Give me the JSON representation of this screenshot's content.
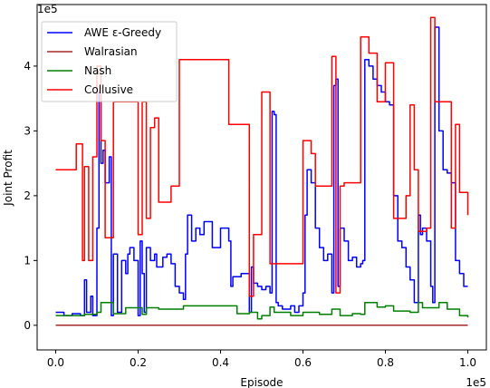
{
  "chart_data": {
    "type": "line",
    "xlabel": "Episode",
    "ylabel": "Joint Profit",
    "x_scale_label": "1e5",
    "y_scale_label": "1e5",
    "xlim": [
      -0.045,
      1.045
    ],
    "ylim": [
      -0.38,
      4.95
    ],
    "x_ticks": [
      0.0,
      0.2,
      0.4,
      0.6,
      0.8,
      1.0
    ],
    "x_tick_labels": [
      "0.0",
      "0.2",
      "0.4",
      "0.6",
      "0.8",
      "1.0"
    ],
    "y_ticks": [
      0,
      1,
      2,
      3,
      4
    ],
    "y_tick_labels": [
      "0",
      "1",
      "2",
      "3",
      "4"
    ],
    "grid": false,
    "legend_position": "top-left",
    "series": [
      {
        "name": "AWE ε-Greedy",
        "color": "#0000ff",
        "x": [
          0.0,
          0.02,
          0.04,
          0.06,
          0.07,
          0.075,
          0.085,
          0.09,
          0.1,
          0.105,
          0.11,
          0.115,
          0.12,
          0.13,
          0.135,
          0.14,
          0.15,
          0.16,
          0.17,
          0.175,
          0.18,
          0.19,
          0.2,
          0.205,
          0.21,
          0.215,
          0.22,
          0.23,
          0.24,
          0.245,
          0.26,
          0.27,
          0.28,
          0.29,
          0.3,
          0.31,
          0.315,
          0.32,
          0.33,
          0.34,
          0.35,
          0.36,
          0.38,
          0.4,
          0.42,
          0.425,
          0.43,
          0.45,
          0.47,
          0.475,
          0.48,
          0.49,
          0.5,
          0.51,
          0.52,
          0.525,
          0.53,
          0.535,
          0.54,
          0.55,
          0.56,
          0.57,
          0.58,
          0.59,
          0.6,
          0.605,
          0.61,
          0.62,
          0.63,
          0.64,
          0.65,
          0.66,
          0.67,
          0.675,
          0.68,
          0.685,
          0.69,
          0.7,
          0.71,
          0.72,
          0.73,
          0.74,
          0.745,
          0.75,
          0.76,
          0.77,
          0.78,
          0.79,
          0.8,
          0.81,
          0.82,
          0.83,
          0.84,
          0.85,
          0.86,
          0.87,
          0.88,
          0.885,
          0.89,
          0.9,
          0.91,
          0.915,
          0.92,
          0.93,
          0.94,
          0.95,
          0.96,
          0.97,
          0.98,
          0.99,
          1.0
        ],
        "values": [
          0.2,
          0.15,
          0.18,
          0.15,
          0.7,
          0.2,
          0.45,
          0.15,
          1.5,
          3.6,
          2.5,
          2.7,
          2.2,
          2.6,
          0.15,
          1.1,
          0.2,
          1.0,
          0.8,
          1.1,
          1.2,
          1.0,
          0.15,
          1.3,
          0.8,
          0.2,
          1.2,
          1.0,
          1.1,
          0.9,
          1.05,
          1.1,
          0.95,
          0.6,
          0.5,
          0.4,
          1.1,
          1.7,
          1.3,
          1.5,
          1.4,
          1.6,
          1.2,
          1.5,
          1.3,
          0.6,
          0.75,
          0.8,
          0.2,
          0.9,
          0.65,
          0.6,
          0.55,
          0.6,
          0.5,
          3.3,
          3.25,
          0.35,
          0.3,
          0.25,
          0.25,
          0.3,
          0.2,
          0.3,
          0.5,
          1.7,
          2.4,
          2.2,
          1.5,
          1.2,
          1.0,
          1.1,
          0.5,
          3.7,
          3.8,
          0.6,
          1.5,
          1.3,
          1.0,
          1.05,
          0.9,
          0.95,
          1.0,
          4.1,
          4.0,
          3.8,
          3.7,
          3.6,
          3.45,
          3.4,
          2.0,
          1.3,
          1.2,
          0.9,
          0.7,
          0.35,
          1.7,
          1.4,
          1.5,
          1.3,
          0.6,
          0.35,
          4.6,
          3.0,
          2.4,
          2.35,
          2.2,
          1.0,
          0.8,
          0.6,
          0.6
        ]
      },
      {
        "name": "Walrasian",
        "color": "#a52a2a",
        "x": [
          0.0,
          1.0
        ],
        "values": [
          0.0,
          0.0
        ]
      },
      {
        "name": "Nash",
        "color": "#008000",
        "x": [
          0.0,
          0.02,
          0.07,
          0.1,
          0.11,
          0.14,
          0.17,
          0.18,
          0.21,
          0.22,
          0.25,
          0.3,
          0.31,
          0.42,
          0.44,
          0.47,
          0.49,
          0.5,
          0.52,
          0.53,
          0.57,
          0.6,
          0.64,
          0.67,
          0.69,
          0.72,
          0.74,
          0.75,
          0.78,
          0.8,
          0.82,
          0.86,
          0.88,
          0.89,
          0.93,
          0.95,
          0.98,
          1.0
        ],
        "values": [
          0.15,
          0.15,
          0.17,
          0.2,
          0.35,
          0.18,
          0.27,
          0.27,
          0.17,
          0.27,
          0.25,
          0.25,
          0.3,
          0.3,
          0.18,
          0.2,
          0.1,
          0.15,
          0.28,
          0.2,
          0.15,
          0.2,
          0.17,
          0.25,
          0.15,
          0.18,
          0.17,
          0.35,
          0.28,
          0.3,
          0.22,
          0.2,
          0.35,
          0.27,
          0.35,
          0.25,
          0.15,
          0.12
        ]
      },
      {
        "name": "Collusive",
        "color": "#ff0000",
        "x": [
          0.0,
          0.05,
          0.065,
          0.07,
          0.08,
          0.09,
          0.1,
          0.11,
          0.12,
          0.14,
          0.16,
          0.2,
          0.21,
          0.22,
          0.23,
          0.24,
          0.25,
          0.28,
          0.3,
          0.31,
          0.32,
          0.36,
          0.42,
          0.47,
          0.48,
          0.5,
          0.52,
          0.54,
          0.6,
          0.62,
          0.63,
          0.67,
          0.68,
          0.69,
          0.7,
          0.74,
          0.76,
          0.78,
          0.8,
          0.82,
          0.85,
          0.86,
          0.87,
          0.88,
          0.9,
          0.91,
          0.92,
          0.935,
          0.96,
          0.97,
          0.98,
          1.0
        ],
        "values": [
          2.4,
          2.8,
          1.0,
          2.45,
          1.0,
          2.6,
          4.0,
          2.85,
          1.35,
          3.45,
          3.45,
          1.4,
          3.45,
          1.65,
          3.05,
          3.2,
          1.9,
          2.15,
          4.1,
          4.1,
          4.1,
          4.1,
          3.1,
          0.45,
          1.4,
          3.6,
          0.95,
          0.95,
          2.85,
          2.65,
          2.15,
          4.15,
          0.5,
          2.15,
          2.2,
          4.45,
          4.2,
          3.45,
          4.05,
          1.65,
          2.0,
          3.4,
          2.4,
          1.45,
          1.5,
          4.75,
          3.45,
          3.45,
          1.5,
          3.1,
          2.05,
          1.7
        ]
      }
    ]
  }
}
